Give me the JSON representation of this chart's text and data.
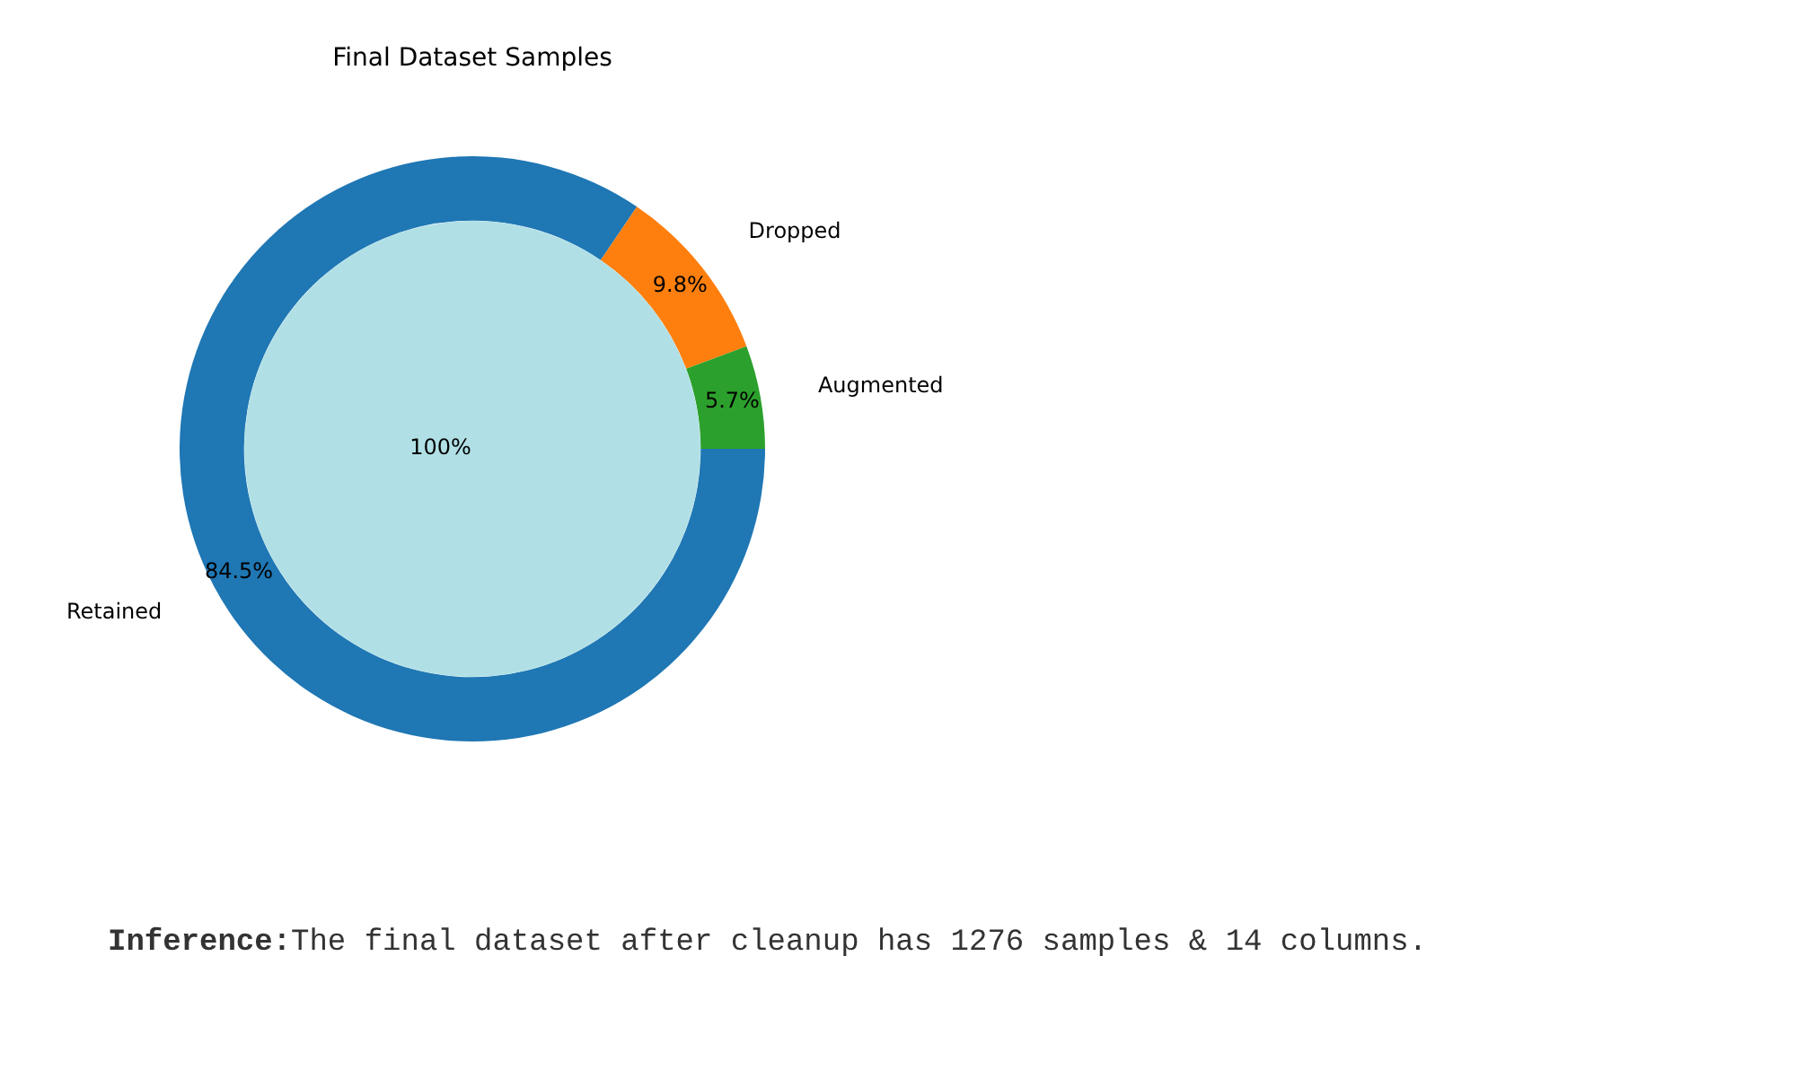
{
  "chart_data": [
    {
      "type": "donut",
      "title": "Final Dataset Samples",
      "categories": [
        "Retained",
        "Dropped",
        "Augmented"
      ],
      "values": [
        84.5,
        9.8,
        5.7
      ],
      "colors": [
        "#1f77b4",
        "#ff7f0e",
        "#2ca02c"
      ],
      "value_labels": [
        "84.5%",
        "9.8%",
        "5.7%"
      ],
      "annotations": [
        "Inference:The final dataset after cleanup has 1276 samples & 14 columns."
      ]
    },
    {
      "type": "pie",
      "categories": [
        null
      ],
      "values": [
        100
      ],
      "colors": [
        "#b0e0e6"
      ],
      "value_labels": [
        "100%"
      ]
    }
  ]
}
